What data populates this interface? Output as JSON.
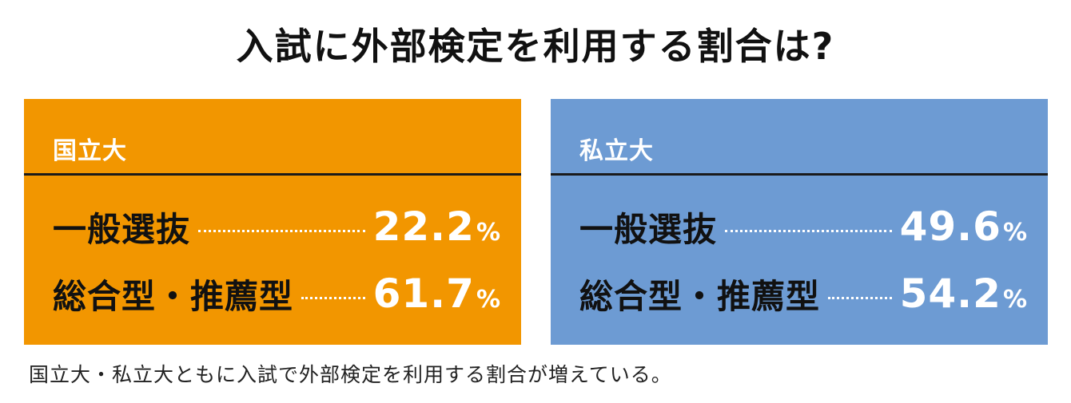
{
  "title": "入試に外部検定を利用する割合は?",
  "caption": "国立大・私立大ともに入試で外部検定を利用する割合が増えている。",
  "colors": {
    "national": "#f29600",
    "private": "#6d9bd3",
    "text_dark": "#111111",
    "text_light": "#ffffff"
  },
  "chart_data": {
    "type": "table",
    "title": "入試に外部検定を利用する割合は?",
    "unit": "%",
    "categories": [
      "一般選抜",
      "総合型・推薦型"
    ],
    "series": [
      {
        "name": "国立大",
        "values": [
          22.2,
          61.7
        ]
      },
      {
        "name": "私立大",
        "values": [
          49.6,
          54.2
        ]
      }
    ]
  },
  "panels": [
    {
      "label": "国立大",
      "rows": [
        {
          "name": "一般選抜",
          "value": "22.2",
          "unit": "%"
        },
        {
          "name": "総合型・推薦型",
          "value": "61.7",
          "unit": "%"
        }
      ]
    },
    {
      "label": "私立大",
      "rows": [
        {
          "name": "一般選抜",
          "value": "49.6",
          "unit": "%"
        },
        {
          "name": "総合型・推薦型",
          "value": "54.2",
          "unit": "%"
        }
      ]
    }
  ]
}
